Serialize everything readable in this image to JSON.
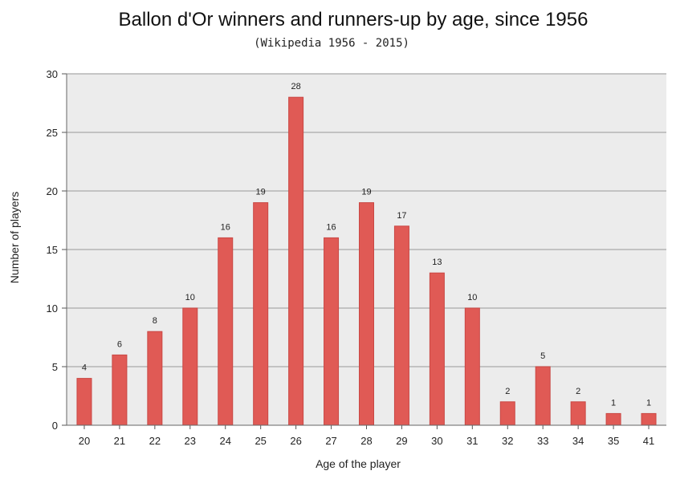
{
  "chart_data": {
    "type": "bar",
    "title": "Ballon d'Or winners and runners-up by age, since 1956",
    "subtitle": "(Wikipedia 1956 - 2015)",
    "xlabel": "Age of the player",
    "ylabel": "Number of players",
    "categories": [
      "20",
      "21",
      "22",
      "23",
      "24",
      "25",
      "26",
      "27",
      "28",
      "29",
      "30",
      "31",
      "32",
      "33",
      "34",
      "35",
      "41"
    ],
    "values": [
      4,
      6,
      8,
      10,
      16,
      19,
      28,
      16,
      19,
      17,
      13,
      10,
      2,
      5,
      2,
      1,
      1
    ],
    "ylim": [
      0,
      30
    ],
    "yticks": [
      0,
      5,
      10,
      15,
      20,
      25,
      30
    ],
    "grid": true,
    "bar_color": "#e05a55",
    "bar_edge_color": "#c94844",
    "plot_background": "#ececec"
  }
}
